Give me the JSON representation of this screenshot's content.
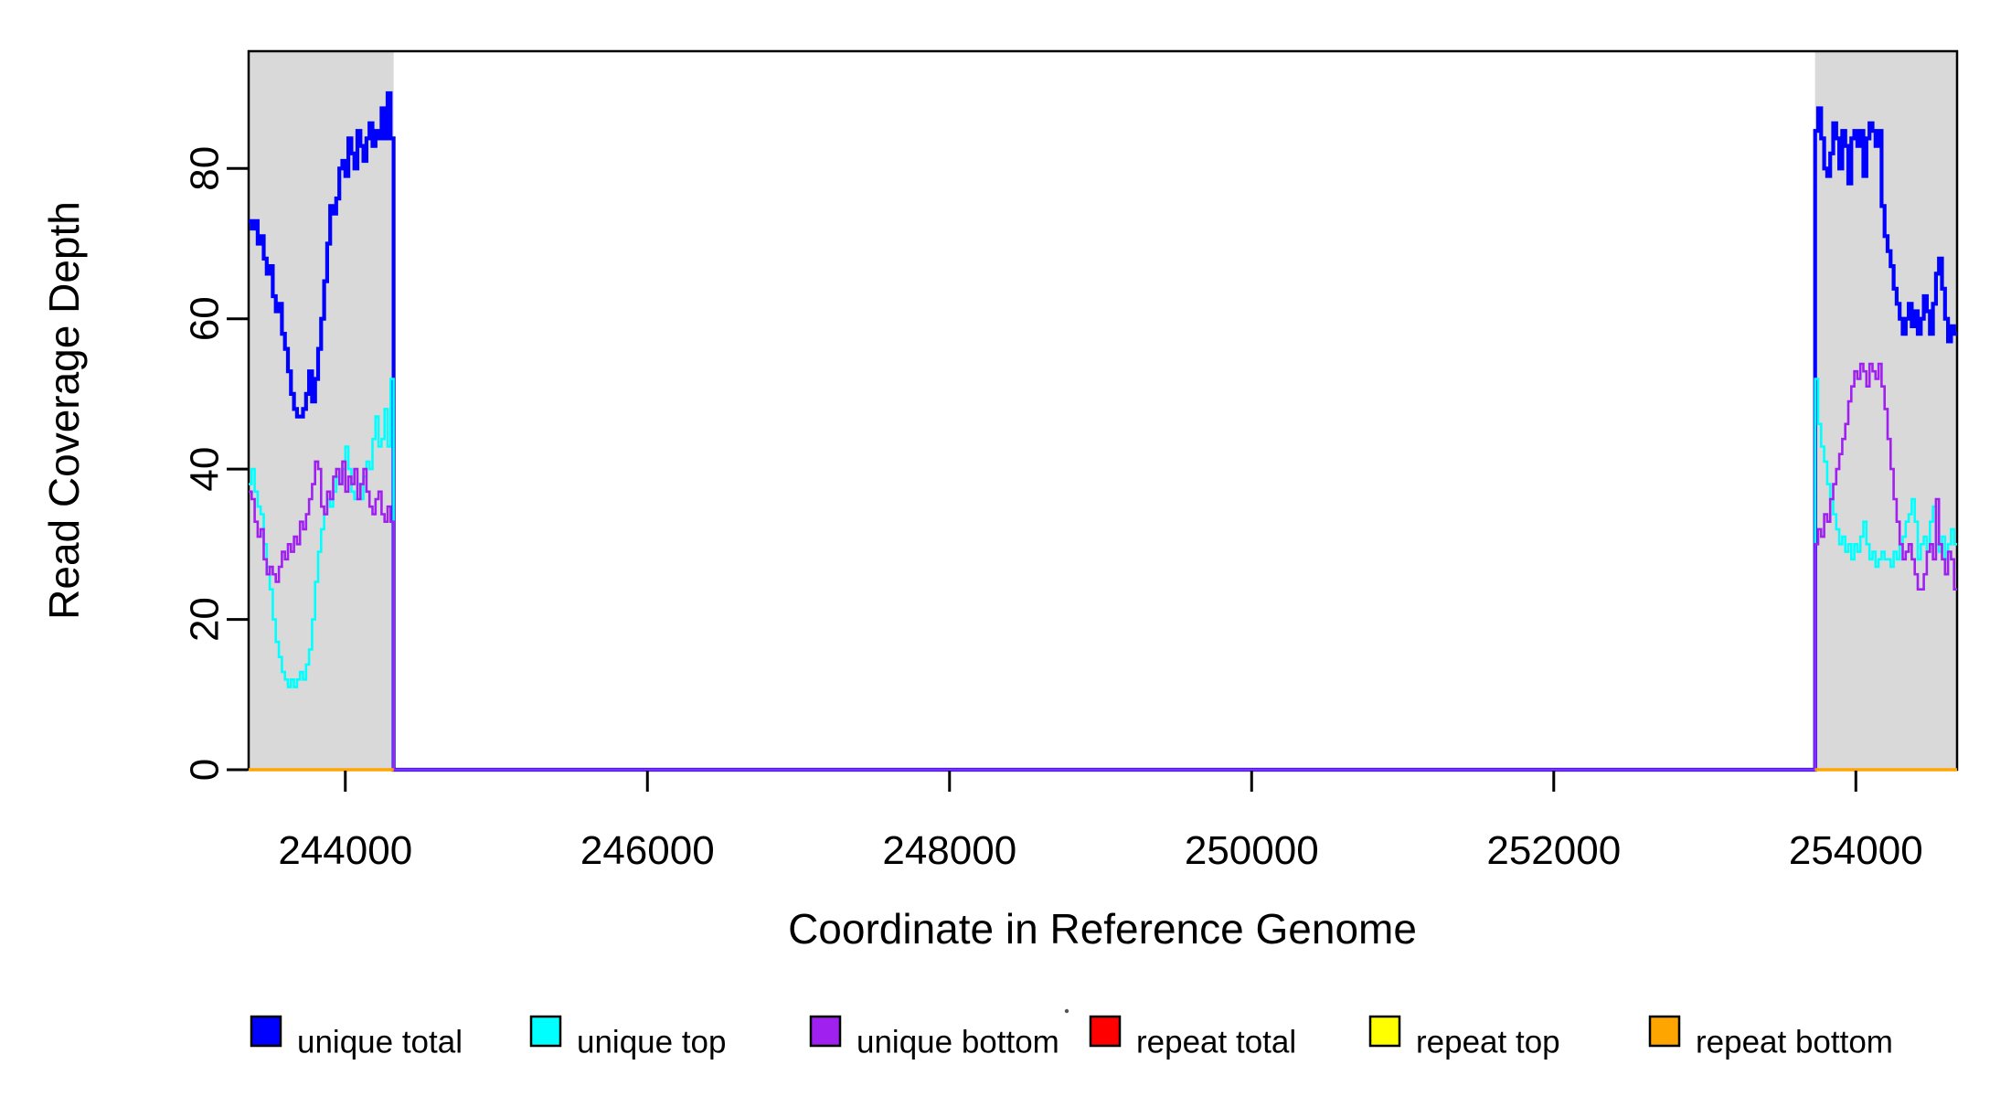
{
  "figure": {
    "xlabel": "Coordinate in Reference Genome",
    "ylabel": "Read Coverage Depth",
    "x_tick_labels": [
      "244000",
      "246000",
      "248000",
      "250000",
      "252000",
      "254000"
    ],
    "y_tick_labels": [
      "0",
      "20",
      "40",
      "60",
      "80"
    ],
    "background_color": "#ffffff",
    "shade_color": "#d9d9d9",
    "axis_color": "#000000"
  },
  "legend": {
    "items": [
      {
        "label": "unique total",
        "color": "#0000ff"
      },
      {
        "label": "unique top",
        "color": "#00ffff"
      },
      {
        "label": "unique bottom",
        "color": "#a020f0"
      },
      {
        "label": "repeat total",
        "color": "#ff0000"
      },
      {
        "label": "repeat top",
        "color": "#ffff00"
      },
      {
        "label": "repeat bottom",
        "color": "#ffa500"
      }
    ]
  },
  "chart_data": {
    "type": "line",
    "title": "",
    "xlabel": "Coordinate in Reference Genome",
    "ylabel": "Read Coverage Depth",
    "xlim": [
      243360,
      254670
    ],
    "ylim": [
      0,
      95.6
    ],
    "x_ticks": [
      244000,
      246000,
      248000,
      250000,
      252000,
      254000
    ],
    "y_ticks": [
      0,
      20,
      40,
      60,
      80
    ],
    "grid": false,
    "legend_position": "bottom",
    "step_interpolation": true,
    "shaded_regions": [
      {
        "name": "left-repeat-region",
        "x0": 243360,
        "x1": 244320
      },
      {
        "name": "right-repeat-region",
        "x0": 253730,
        "x1": 254670
      }
    ],
    "series": [
      {
        "name": "unique total",
        "color": "#0000ff",
        "segments": [
          {
            "start": 243360,
            "dx": 20,
            "values": [
              73,
              72,
              73,
              70,
              71,
              68,
              66,
              67,
              63,
              61,
              62,
              58,
              56,
              53,
              50,
              48,
              47,
              47,
              48,
              50,
              53,
              49,
              52,
              56,
              60,
              65,
              70,
              75,
              74,
              76,
              80,
              81,
              79,
              84,
              82,
              80,
              85,
              83,
              81,
              84,
              86,
              83,
              85,
              84,
              88,
              84,
              90,
              84
            ]
          },
          {
            "start": 244320,
            "dx": 9410,
            "values": [
              0
            ]
          },
          {
            "start": 253730,
            "dx": 20,
            "values": [
              85,
              88,
              84,
              80,
              79,
              82,
              86,
              84,
              80,
              85,
              83,
              78,
              84,
              85,
              83,
              85,
              79,
              84,
              86,
              85,
              83,
              85,
              75,
              71,
              69,
              67,
              64,
              62,
              60,
              58,
              60,
              62,
              59,
              61,
              58,
              60,
              63,
              61,
              58,
              62,
              66,
              68,
              64,
              60,
              57,
              59,
              58
            ]
          }
        ]
      },
      {
        "name": "unique top",
        "color": "#00ffff",
        "segments": [
          {
            "start": 243360,
            "dx": 20,
            "values": [
              38,
              40,
              37,
              35,
              34,
              30,
              27,
              24,
              20,
              17,
              15,
              13,
              12,
              11,
              12,
              11,
              12,
              13,
              12,
              14,
              16,
              20,
              25,
              29,
              32,
              34,
              36,
              35,
              37,
              39,
              38,
              40,
              43,
              40,
              37,
              36,
              38,
              36,
              39,
              41,
              40,
              44,
              47,
              43,
              44,
              48,
              43,
              52
            ]
          },
          {
            "start": 244320,
            "dx": 9410,
            "values": [
              0
            ]
          },
          {
            "start": 253730,
            "dx": 20,
            "values": [
              52,
              46,
              43,
              41,
              38,
              36,
              34,
              32,
              30,
              31,
              29,
              30,
              28,
              30,
              29,
              31,
              33,
              30,
              28,
              29,
              27,
              28,
              29,
              28,
              28,
              27,
              29,
              28,
              30,
              31,
              33,
              34,
              36,
              33,
              28,
              30,
              31,
              29,
              33,
              35,
              30,
              29,
              31,
              28,
              30,
              32,
              30
            ]
          }
        ]
      },
      {
        "name": "unique bottom",
        "color": "#a020f0",
        "segments": [
          {
            "start": 243360,
            "dx": 20,
            "values": [
              37,
              36,
              33,
              31,
              32,
              28,
              26,
              27,
              26,
              25,
              27,
              29,
              28,
              30,
              29,
              31,
              30,
              33,
              32,
              34,
              36,
              38,
              41,
              40,
              35,
              34,
              37,
              36,
              39,
              40,
              38,
              41,
              37,
              39,
              38,
              40,
              36,
              38,
              40,
              37,
              35,
              34,
              36,
              37,
              34,
              33,
              35,
              33
            ]
          },
          {
            "start": 244320,
            "dx": 9410,
            "values": [
              0
            ]
          },
          {
            "start": 253730,
            "dx": 20,
            "values": [
              30,
              32,
              31,
              34,
              33,
              36,
              38,
              40,
              42,
              44,
              46,
              49,
              51,
              53,
              52,
              54,
              53,
              51,
              54,
              53,
              52,
              54,
              51,
              48,
              44,
              40,
              36,
              33,
              30,
              28,
              29,
              30,
              28,
              26,
              24,
              24,
              26,
              29,
              30,
              28,
              36,
              30,
              28,
              26,
              29,
              28,
              24
            ]
          }
        ]
      },
      {
        "name": "repeat total",
        "color": "#ff0000",
        "segments": [
          {
            "start": 243360,
            "dx": 960,
            "values": [
              0
            ]
          },
          {
            "start": 253730,
            "dx": 940,
            "values": [
              0
            ]
          }
        ]
      },
      {
        "name": "repeat top",
        "color": "#ffff00",
        "segments": [
          {
            "start": 243360,
            "dx": 960,
            "values": [
              0
            ]
          },
          {
            "start": 253730,
            "dx": 940,
            "values": [
              0
            ]
          }
        ]
      },
      {
        "name": "repeat bottom",
        "color": "#ffa500",
        "segments": [
          {
            "start": 243360,
            "dx": 960,
            "values": [
              0
            ]
          },
          {
            "start": 253730,
            "dx": 940,
            "values": [
              0
            ]
          }
        ]
      }
    ]
  }
}
